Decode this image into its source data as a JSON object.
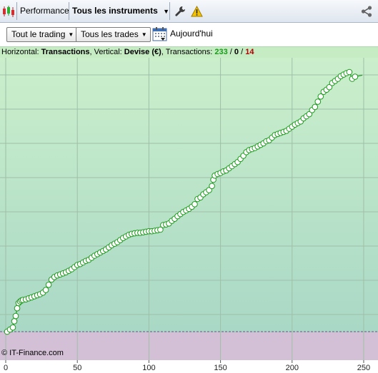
{
  "toolbar": {
    "performance_label": "Performance",
    "instruments_label": "Tous les instruments"
  },
  "filters": {
    "trading_label": "Tout le trading",
    "trades_label": "Tous les trades",
    "date_label": "Aujourd'hui"
  },
  "info": {
    "horizontal_prefix": "Horizontal: ",
    "horizontal_value": "Transactions",
    "vertical_prefix": ", Vertical: ",
    "vertical_value": "Devise (€)",
    "transactions_prefix": ", Transactions: ",
    "count_total": "233",
    "slash1": " / ",
    "count_mid": "0",
    "slash2": " / ",
    "count_loss": "14"
  },
  "chart_data": {
    "type": "line",
    "watermark": "© IT-Finance.com",
    "x_ticks": [
      0,
      50,
      100,
      150,
      200,
      250
    ],
    "xlim": [
      -4,
      260
    ],
    "series": [
      {
        "x": [
          1,
          3,
          5,
          6,
          7,
          8,
          9,
          10,
          11,
          12,
          14,
          16,
          18,
          20,
          22,
          24,
          26,
          28,
          30,
          32,
          34,
          36,
          38,
          40,
          42,
          44,
          46,
          48,
          50,
          52,
          54,
          56,
          58,
          60,
          62,
          64,
          66,
          68,
          70,
          72,
          74,
          76,
          78,
          80,
          82,
          84,
          86,
          88,
          90,
          92,
          94,
          96,
          98,
          100,
          102,
          104,
          106,
          108,
          110,
          112,
          114,
          116,
          118,
          120,
          122,
          124,
          126,
          128,
          130,
          132,
          134,
          136,
          138,
          140,
          142,
          144,
          145,
          146,
          148,
          150,
          152,
          154,
          156,
          158,
          160,
          162,
          164,
          166,
          168,
          170,
          172,
          174,
          176,
          178,
          180,
          182,
          184,
          186,
          188,
          190,
          192,
          194,
          196,
          198,
          200,
          202,
          204,
          206,
          208,
          210,
          212,
          214,
          216,
          218,
          220,
          222,
          224,
          226,
          228,
          230,
          232,
          234,
          236,
          238,
          240,
          242,
          244
        ],
        "y": [
          0,
          4,
          8,
          20,
          30,
          45,
          55,
          58,
          60,
          61,
          62,
          64,
          66,
          68,
          70,
          72,
          75,
          80,
          90,
          100,
          105,
          108,
          110,
          112,
          114,
          117,
          120,
          124,
          128,
          130,
          133,
          136,
          138,
          142,
          146,
          149,
          152,
          155,
          158,
          162,
          166,
          169,
          172,
          176,
          180,
          183,
          186,
          188,
          189,
          190,
          190,
          191,
          192,
          193,
          193,
          194,
          195,
          196,
          205,
          206,
          208,
          213,
          217,
          222,
          226,
          230,
          233,
          236,
          240,
          245,
          255,
          258,
          264,
          268,
          272,
          280,
          292,
          300,
          303,
          305,
          308,
          310,
          314,
          318,
          322,
          326,
          332,
          338,
          345,
          349,
          351,
          353,
          356,
          359,
          362,
          366,
          368,
          373,
          378,
          380,
          382,
          384,
          386,
          390,
          394,
          398,
          401,
          404,
          410,
          414,
          418,
          426,
          432,
          442,
          452,
          461,
          465,
          470,
          478,
          482,
          486,
          491,
          494,
          497,
          499,
          486,
          490
        ]
      }
    ]
  },
  "colors": {
    "line": "#1e9a1e",
    "total_count": "#1a9a1a",
    "loss_count": "#b00000",
    "plot_bg_top": "#cbefcb",
    "plot_bg_bottom": "#a9d8c6",
    "negative_zone": "#d4c0d6"
  }
}
